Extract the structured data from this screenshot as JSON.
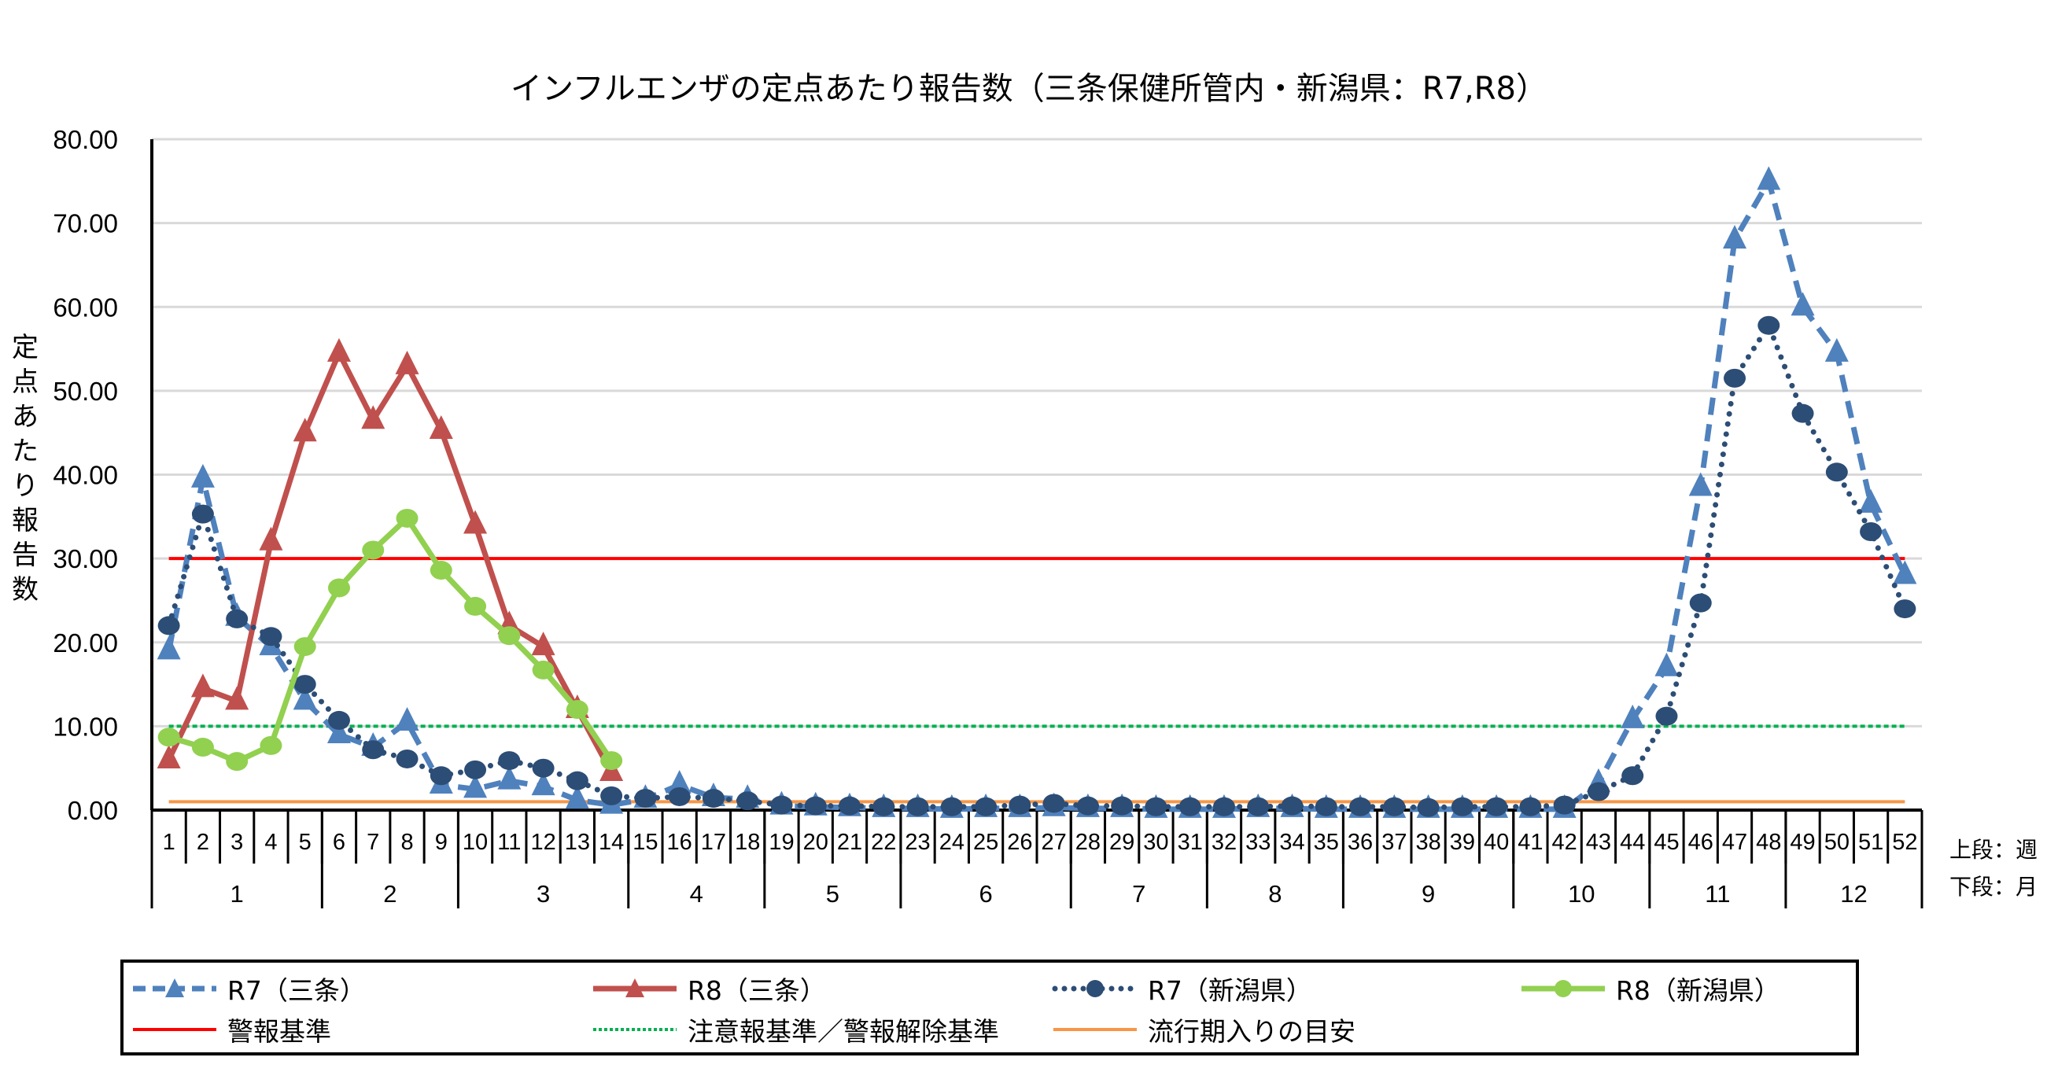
{
  "chart_data": {
    "type": "line",
    "title": "インフルエンザの定点あたり報告数（三条保健所管内・新潟県：R7,R8）",
    "ylabel": "定点あたり報告数",
    "xlabel_note": [
      "上段：週",
      "下段：月"
    ],
    "ylim": [
      0,
      80
    ],
    "yticks": [
      "0.00",
      "10.00",
      "20.00",
      "30.00",
      "40.00",
      "50.00",
      "60.00",
      "70.00",
      "80.00"
    ],
    "grid": true,
    "legend_position": "bottom",
    "x": [
      1,
      2,
      3,
      4,
      5,
      6,
      7,
      8,
      9,
      10,
      11,
      12,
      13,
      14,
      15,
      16,
      17,
      18,
      19,
      20,
      21,
      22,
      23,
      24,
      25,
      26,
      27,
      28,
      29,
      30,
      31,
      32,
      33,
      34,
      35,
      36,
      37,
      38,
      39,
      40,
      41,
      42,
      43,
      44,
      45,
      46,
      47,
      48,
      49,
      50,
      51,
      52
    ],
    "months": [
      {
        "label": "1",
        "from": 1,
        "to": 5
      },
      {
        "label": "2",
        "from": 6,
        "to": 9
      },
      {
        "label": "3",
        "from": 10,
        "to": 14
      },
      {
        "label": "4",
        "from": 15,
        "to": 18
      },
      {
        "label": "5",
        "from": 19,
        "to": 22
      },
      {
        "label": "6",
        "from": 23,
        "to": 27
      },
      {
        "label": "7",
        "from": 28,
        "to": 31
      },
      {
        "label": "8",
        "from": 32,
        "to": 35
      },
      {
        "label": "9",
        "from": 36,
        "to": 40
      },
      {
        "label": "10",
        "from": 41,
        "to": 44
      },
      {
        "label": "11",
        "from": 45,
        "to": 48
      },
      {
        "label": "12",
        "from": 49,
        "to": 52
      }
    ],
    "series": [
      {
        "name": "R7（三条）",
        "color": "#4F81BD",
        "style": "dashed",
        "marker": "triangle",
        "values": [
          19.0,
          39.5,
          23.0,
          19.5,
          13.0,
          9.0,
          7.5,
          10.5,
          3.0,
          2.5,
          3.5,
          2.8,
          1.2,
          0.6,
          1.3,
          3.0,
          1.5,
          1.3,
          0.5,
          0.4,
          0.3,
          0.2,
          0.2,
          0.1,
          0.2,
          0.2,
          0.3,
          0.2,
          0.2,
          0.1,
          0.1,
          0.1,
          0.2,
          0.2,
          0.1,
          0.1,
          0.1,
          0.1,
          0.1,
          0.1,
          0.1,
          0.1,
          3.2,
          10.8,
          17.0,
          38.5,
          68.0,
          75.0,
          60.0,
          54.5,
          36.5,
          28.0
        ]
      },
      {
        "name": "R8（三条）",
        "color": "#C0504D",
        "style": "solid",
        "marker": "triangle",
        "values": [
          6.0,
          14.5,
          13.0,
          32.0,
          45.0,
          54.5,
          46.5,
          53.0,
          45.3,
          34.0,
          22.0,
          19.5,
          12.0,
          4.5
        ]
      },
      {
        "name": "R7（新潟県）",
        "color": "#2C4D75",
        "style": "dotted",
        "marker": "circle",
        "values": [
          22.0,
          35.3,
          22.8,
          20.7,
          15.0,
          10.7,
          7.2,
          6.1,
          4.1,
          4.8,
          5.9,
          5.0,
          3.5,
          1.7,
          1.4,
          1.6,
          1.4,
          1.1,
          0.6,
          0.5,
          0.5,
          0.4,
          0.4,
          0.4,
          0.4,
          0.6,
          0.8,
          0.5,
          0.5,
          0.4,
          0.4,
          0.4,
          0.4,
          0.5,
          0.4,
          0.4,
          0.4,
          0.3,
          0.4,
          0.4,
          0.4,
          0.6,
          2.2,
          4.1,
          11.2,
          24.7,
          51.5,
          57.8,
          47.3,
          40.3,
          33.2,
          24.0
        ]
      },
      {
        "name": "R8（新潟県）",
        "color": "#92D050",
        "style": "solid",
        "marker": "circle",
        "values": [
          8.7,
          7.5,
          5.8,
          7.7,
          19.5,
          26.5,
          31.0,
          34.8,
          28.6,
          24.3,
          20.8,
          16.7,
          12.0,
          5.9
        ]
      }
    ],
    "reference_lines": [
      {
        "name": "警報基準",
        "value": 30,
        "color": "#FF0000",
        "style": "solid"
      },
      {
        "name": "注意報基準／警報解除基準",
        "value": 10,
        "color": "#00B050",
        "style": "dotted"
      },
      {
        "name": "流行期入りの目安",
        "value": 1,
        "color": "#F79646",
        "style": "solid"
      }
    ]
  },
  "legend": {
    "r7_sanjo": "R7（三条）",
    "r8_sanjo": "R8（三条）",
    "r7_niigata": "R7（新潟県）",
    "r8_niigata": "R8（新潟県）",
    "alarm": "警報基準",
    "warning": "注意報基準／警報解除基準",
    "epidemic": "流行期入りの目安"
  }
}
